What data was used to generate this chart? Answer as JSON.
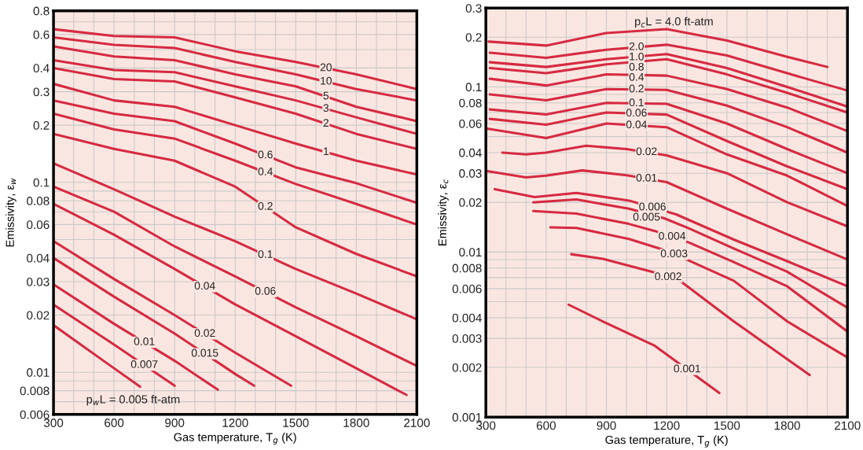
{
  "chart_data": [
    {
      "type": "line",
      "xlabel": "Gas temperature, T$_{g}$ (K)",
      "ylabel": "Emissivity, ε$_{w}$",
      "log": true,
      "grid": true,
      "xlim": [
        300,
        2100
      ],
      "xticks": [
        300,
        600,
        900,
        1200,
        1500,
        1800,
        2100
      ],
      "ylim": [
        0.006,
        0.8
      ],
      "yticks": [
        0.006,
        0.008,
        0.01,
        0.02,
        0.03,
        0.04,
        0.06,
        0.08,
        0.1,
        0.2,
        0.3,
        0.4,
        0.6,
        0.8
      ],
      "x": [
        300,
        600,
        900,
        1200,
        1500,
        1800,
        2100
      ],
      "series": [
        {
          "name": "20",
          "color": "#d62a41",
          "values": [
            0.64,
            0.59,
            0.58,
            0.49,
            0.43,
            0.37,
            0.31
          ]
        },
        {
          "name": "10",
          "color": "#d62a41",
          "values": [
            0.58,
            0.53,
            0.51,
            0.43,
            0.37,
            0.31,
            0.27
          ]
        },
        {
          "name": "5",
          "color": "#d62a41",
          "values": [
            0.52,
            0.46,
            0.44,
            0.37,
            0.32,
            0.25,
            0.21
          ]
        },
        {
          "name": "3",
          "color": "#d62a41",
          "values": [
            0.44,
            0.39,
            0.38,
            0.32,
            0.27,
            0.22,
            0.18
          ]
        },
        {
          "name": "2",
          "color": "#d62a41",
          "values": [
            0.4,
            0.35,
            0.34,
            0.28,
            0.23,
            0.18,
            0.15
          ]
        },
        {
          "name": "1",
          "color": "#d62a41",
          "values": [
            0.33,
            0.27,
            0.25,
            0.2,
            0.16,
            0.13,
            0.11
          ]
        },
        {
          "name": "0.6",
          "color": "#d62a41",
          "values": [
            0.27,
            0.23,
            0.21,
            0.16,
            0.12,
            0.099,
            0.078
          ]
        },
        {
          "name": "0.4",
          "color": "#d62a41",
          "values": [
            0.23,
            0.19,
            0.17,
            0.13,
            0.098,
            0.077,
            0.06
          ]
        },
        {
          "name": "0.2",
          "color": "#d62a41",
          "values": [
            0.18,
            0.15,
            0.13,
            0.095,
            0.058,
            0.042,
            0.032
          ]
        },
        {
          "name": "0.1",
          "color": "#d62a41",
          "values": [
            0.126,
            0.092,
            0.066,
            0.049,
            0.035,
            0.026,
            0.019
          ]
        },
        {
          "name": "0.06",
          "color": "#d62a41",
          "values": [
            0.095,
            0.07,
            0.046,
            0.032,
            0.022,
            0.0155,
            0.0108
          ]
        },
        {
          "name": "0.04",
          "color": "#d62a41",
          "x": [
            300,
            600,
            900,
            1200,
            1500,
            1800,
            2049
          ],
          "values": [
            0.077,
            0.053,
            0.035,
            0.0228,
            0.0155,
            0.0105,
            0.0076
          ]
        },
        {
          "name": "0.02",
          "color": "#d62a41",
          "x": [
            300,
            600,
            900,
            1200,
            1477
          ],
          "values": [
            0.049,
            0.031,
            0.02,
            0.0127,
            0.0085
          ]
        },
        {
          "name": "0.015",
          "color": "#d62a41",
          "x": [
            300,
            600,
            900,
            1200,
            1294
          ],
          "values": [
            0.04,
            0.025,
            0.016,
            0.0098,
            0.0085
          ]
        },
        {
          "name": "0.01",
          "color": "#d62a41",
          "x": [
            300,
            600,
            900,
            1114
          ],
          "values": [
            0.029,
            0.018,
            0.0115,
            0.0081
          ]
        },
        {
          "name": "0.007",
          "color": "#d62a41",
          "x": [
            300,
            600,
            900
          ],
          "values": [
            0.0227,
            0.014,
            0.0085
          ]
        },
        {
          "name": "p$_{w}$L = 0.005 ft-atm",
          "color": "#d62a41",
          "x": [
            300,
            600,
            729
          ],
          "values": [
            0.0177,
            0.0105,
            0.0084
          ]
        }
      ]
    },
    {
      "type": "line",
      "xlabel": "Gas temperature, T$_{g}$ (K)",
      "ylabel": "Emissivity, ε$_{c}$",
      "log": true,
      "grid": true,
      "xlim": [
        300,
        2100
      ],
      "xticks": [
        300,
        600,
        900,
        1200,
        1500,
        1800,
        2100
      ],
      "ylim": [
        0.001,
        0.3
      ],
      "yticks": [
        0.001,
        0.002,
        0.003,
        0.004,
        0.006,
        0.008,
        0.01,
        0.02,
        0.03,
        0.04,
        0.06,
        0.08,
        0.1,
        0.2,
        0.3
      ],
      "x": [
        320,
        600,
        900,
        1200,
        1500,
        1800,
        2100
      ],
      "series": [
        {
          "name": "p$_{c}$L = 4.0 ft-atm",
          "color": "#d62a41",
          "x": [
            314,
            600,
            900,
            1200,
            1500,
            1800,
            2000
          ],
          "values": [
            0.188,
            0.178,
            0.212,
            0.224,
            0.191,
            0.152,
            0.132
          ]
        },
        {
          "name": "2.0",
          "color": "#d62a41",
          "values": [
            0.161,
            0.15,
            0.168,
            0.18,
            0.155,
            0.121,
            0.095
          ]
        },
        {
          "name": "1.0",
          "color": "#d62a41",
          "values": [
            0.141,
            0.132,
            0.147,
            0.158,
            0.13,
            0.1,
            0.076
          ]
        },
        {
          "name": "0.8",
          "color": "#d62a41",
          "values": [
            0.13,
            0.121,
            0.137,
            0.147,
            0.119,
            0.092,
            0.07
          ]
        },
        {
          "name": "0.4",
          "color": "#d62a41",
          "values": [
            0.112,
            0.102,
            0.119,
            0.117,
            0.097,
            0.075,
            0.054
          ]
        },
        {
          "name": "0.2",
          "color": "#d62a41",
          "values": [
            0.09,
            0.083,
            0.097,
            0.096,
            0.077,
            0.057,
            0.04
          ]
        },
        {
          "name": "0.1",
          "color": "#d62a41",
          "values": [
            0.073,
            0.068,
            0.08,
            0.079,
            0.06,
            0.042,
            0.03
          ]
        },
        {
          "name": "0.06",
          "color": "#d62a41",
          "values": [
            0.064,
            0.059,
            0.07,
            0.068,
            0.047,
            0.033,
            0.024
          ]
        },
        {
          "name": "0.04",
          "color": "#d62a41",
          "x": [
            300,
            600,
            900,
            1200,
            1500,
            1800,
            2100
          ],
          "values": [
            0.056,
            0.049,
            0.06,
            0.057,
            0.039,
            0.029,
            0.019
          ]
        },
        {
          "name": "0.02",
          "color": "#d62a41",
          "x": [
            382,
            500,
            600,
            800,
            1000,
            1200,
            1500,
            1800,
            2100
          ],
          "values": [
            0.04,
            0.039,
            0.04,
            0.044,
            0.042,
            0.0385,
            0.03,
            0.02,
            0.0143
          ]
        },
        {
          "name": "0.01",
          "color": "#d62a41",
          "x": [
            300,
            500,
            600,
            780,
            1000,
            1200,
            1500,
            1800,
            2100
          ],
          "values": [
            0.031,
            0.0283,
            0.029,
            0.0312,
            0.0292,
            0.0265,
            0.0183,
            0.0128,
            0.009
          ]
        },
        {
          "name": "0.006",
          "color": "#d62a41",
          "x": [
            344,
            543,
            751,
            1012,
            1247,
            1534,
            1800,
            2100
          ],
          "values": [
            0.024,
            0.0215,
            0.0228,
            0.0205,
            0.0169,
            0.0119,
            0.0088,
            0.0062
          ]
        },
        {
          "name": "0.005",
          "color": "#d62a41",
          "x": [
            536,
            751,
            1012,
            1188,
            1305,
            1534,
            1800,
            2100
          ],
          "values": [
            0.02,
            0.0208,
            0.0183,
            0.016,
            0.014,
            0.0105,
            0.0076,
            0.0046
          ]
        },
        {
          "name": "0.004",
          "color": "#d62a41",
          "x": [
            536,
            751,
            1012,
            1142,
            1312,
            1534,
            1800,
            2100
          ],
          "values": [
            0.0177,
            0.0171,
            0.0148,
            0.0134,
            0.0114,
            0.0087,
            0.0062,
            0.0033
          ]
        },
        {
          "name": "0.003",
          "color": "#d62a41",
          "x": [
            621,
            751,
            1012,
            1175,
            1299,
            1534,
            1800,
            2100
          ],
          "values": [
            0.0141,
            0.014,
            0.012,
            0.0104,
            0.009,
            0.0067,
            0.0038,
            0.0023
          ]
        },
        {
          "name": "0.002",
          "color": "#d62a41",
          "x": [
            725,
            882,
            1142,
            1273,
            1534,
            1912
          ],
          "values": [
            0.0097,
            0.0091,
            0.0075,
            0.0066,
            0.0038,
            0.0018
          ]
        },
        {
          "name": "0.001",
          "color": "#d62a41",
          "x": [
            712,
            882,
            1142,
            1462
          ],
          "values": [
            0.0048,
            0.0038,
            0.0027,
            0.0014
          ]
        }
      ]
    }
  ]
}
